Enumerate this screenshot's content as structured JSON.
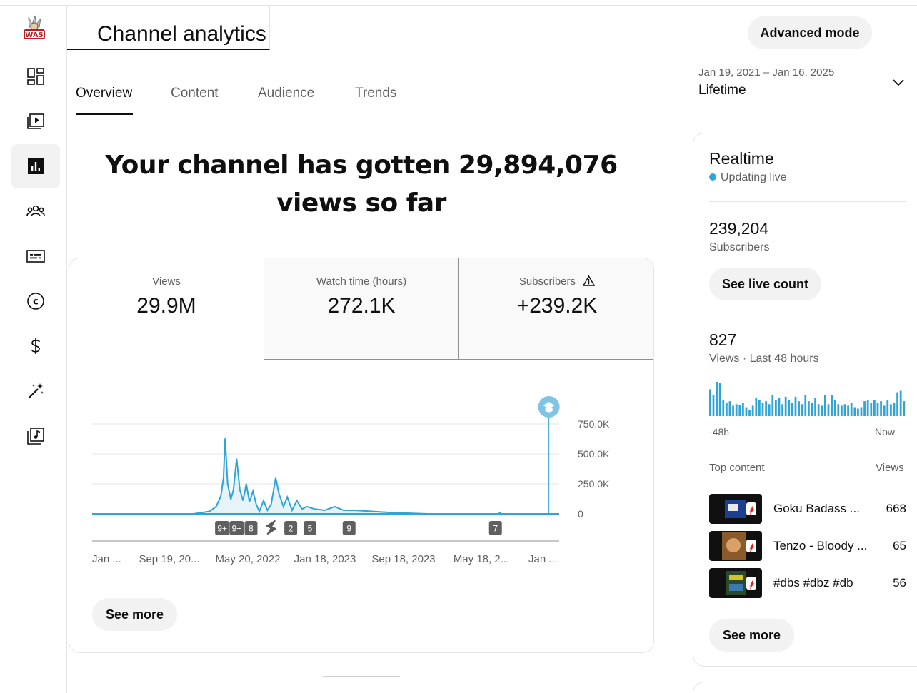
{
  "page": {
    "title": "Channel analytics",
    "advanced_mode_label": "Advanced mode",
    "headline": "Your channel has gotten 29,894,076 views so far"
  },
  "tabs": [
    {
      "label": "Overview",
      "active": true
    },
    {
      "label": "Content",
      "active": false
    },
    {
      "label": "Audience",
      "active": false
    },
    {
      "label": "Trends",
      "active": false
    }
  ],
  "date_range": {
    "range_text": "Jan 19, 2021 – Jan 16, 2025",
    "label": "Lifetime"
  },
  "sidebar": {
    "logo_text": "WAS",
    "items": [
      {
        "icon": "dashboard-icon",
        "active": false
      },
      {
        "icon": "content-icon",
        "active": false
      },
      {
        "icon": "analytics-icon",
        "active": true
      },
      {
        "icon": "community-icon",
        "active": false
      },
      {
        "icon": "subtitles-icon",
        "active": false
      },
      {
        "icon": "copyright-icon",
        "active": false
      },
      {
        "icon": "earn-icon",
        "active": false
      },
      {
        "icon": "customization-icon",
        "active": false
      },
      {
        "icon": "audio-library-icon",
        "active": false
      }
    ]
  },
  "metrics": {
    "views": {
      "label": "Views",
      "value": "29.9M"
    },
    "watch_time": {
      "label": "Watch time (hours)",
      "value": "272.1K"
    },
    "subscribers": {
      "label": "Subscribers",
      "value": "+239.2K",
      "warning_icon": "warning-icon"
    }
  },
  "chart_data": {
    "type": "line",
    "color": "#2fa4d7",
    "y_ticks": [
      "750.0K",
      "500.0K",
      "250.0K",
      "0"
    ],
    "y_tick_values": [
      750000,
      500000,
      250000,
      0
    ],
    "ylim": [
      0,
      750000
    ],
    "x_tick_labels": [
      "Jan ...",
      "Sep 19, 20...",
      "May 20, 2022",
      "Jan 18, 2023",
      "Sep 18, 2023",
      "May 18, 2...",
      "Jan ..."
    ],
    "x_range": [
      "2021-01-19",
      "2025-01-16"
    ],
    "series": [
      {
        "values": [
          [
            "2021-01-19",
            0
          ],
          [
            "2021-12-01",
            0
          ],
          [
            "2022-01-20",
            20000
          ],
          [
            "2022-02-10",
            60000
          ],
          [
            "2022-02-25",
            150000
          ],
          [
            "2022-03-05",
            300000
          ],
          [
            "2022-03-10",
            630000
          ],
          [
            "2022-03-18",
            250000
          ],
          [
            "2022-03-28",
            120000
          ],
          [
            "2022-04-05",
            200000
          ],
          [
            "2022-04-15",
            460000
          ],
          [
            "2022-04-25",
            200000
          ],
          [
            "2022-05-05",
            110000
          ],
          [
            "2022-05-15",
            250000
          ],
          [
            "2022-05-25",
            100000
          ],
          [
            "2022-06-05",
            190000
          ],
          [
            "2022-06-15",
            80000
          ],
          [
            "2022-06-25",
            20000
          ],
          [
            "2022-07-08",
            110000
          ],
          [
            "2022-07-20",
            30000
          ],
          [
            "2022-08-01",
            80000
          ],
          [
            "2022-08-15",
            300000
          ],
          [
            "2022-08-25",
            170000
          ],
          [
            "2022-09-08",
            60000
          ],
          [
            "2022-09-20",
            140000
          ],
          [
            "2022-10-05",
            30000
          ],
          [
            "2022-10-20",
            110000
          ],
          [
            "2022-11-05",
            40000
          ],
          [
            "2022-11-20",
            60000
          ],
          [
            "2022-12-15",
            40000
          ],
          [
            "2023-01-15",
            30000
          ],
          [
            "2023-02-15",
            60000
          ],
          [
            "2023-03-15",
            30000
          ],
          [
            "2023-04-15",
            30000
          ],
          [
            "2023-05-15",
            25000
          ],
          [
            "2023-06-15",
            20000
          ],
          [
            "2023-07-15",
            15000
          ],
          [
            "2023-08-15",
            10000
          ],
          [
            "2023-09-15",
            8000
          ],
          [
            "2023-10-15",
            5000
          ],
          [
            "2023-12-01",
            0
          ],
          [
            "2024-07-10",
            0
          ],
          [
            "2024-07-15",
            8000
          ],
          [
            "2024-07-20",
            0
          ],
          [
            "2025-01-16",
            0
          ]
        ]
      }
    ],
    "annotations": [
      {
        "date": "2022-03-01",
        "label": "9+"
      },
      {
        "date": "2022-04-15",
        "label": "9+"
      },
      {
        "date": "2022-05-30",
        "label": "8"
      },
      {
        "date": "2022-08-01",
        "label": "shorts-icon"
      },
      {
        "date": "2022-10-01",
        "label": "2"
      },
      {
        "date": "2022-11-30",
        "label": "5"
      },
      {
        "date": "2023-04-01",
        "label": "9"
      },
      {
        "date": "2024-07-01",
        "label": "7"
      }
    ],
    "marker": {
      "date": "2024-12-15",
      "icon": "graduation-cap-icon"
    }
  },
  "see_more_label": "See more",
  "realtime": {
    "title": "Realtime",
    "status": "Updating live",
    "subscribers_value": "239,204",
    "subscribers_label": "Subscribers",
    "live_count_label": "See live count",
    "views_value": "827",
    "views_label": "Views · Last 48 hours",
    "axis_start": "-48h",
    "axis_end": "Now",
    "bars": [
      36,
      28,
      46,
      45,
      22,
      18,
      20,
      14,
      16,
      15,
      18,
      12,
      8,
      14,
      25,
      22,
      18,
      20,
      16,
      28,
      22,
      24,
      16,
      26,
      22,
      18,
      26,
      20,
      16,
      28,
      20,
      18,
      24,
      16,
      14,
      28,
      16,
      28,
      22,
      16,
      14,
      16,
      14,
      18,
      12,
      10,
      12,
      20,
      22,
      18,
      22,
      18,
      20,
      14,
      22,
      16,
      18,
      32,
      34,
      20
    ],
    "top_content_label": "Top content",
    "views_column_label": "Views",
    "items": [
      {
        "title": "Goku Badass ...",
        "views": "668"
      },
      {
        "title": "Tenzo - Bloody ...",
        "views": "65"
      },
      {
        "title": "#dbs #dbz #db",
        "views": "56"
      }
    ],
    "see_more_label": "See more"
  }
}
